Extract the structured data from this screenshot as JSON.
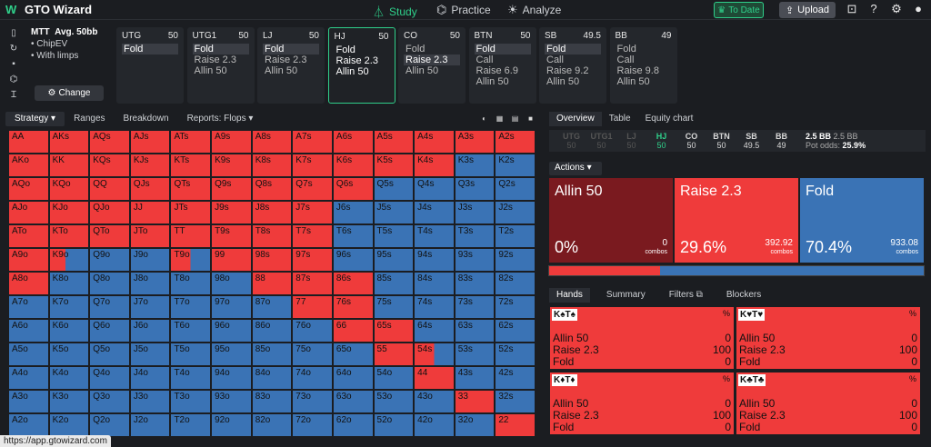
{
  "app": {
    "title": "GTO Wizard",
    "logo_letter": "W"
  },
  "nav": [
    {
      "label": "Study",
      "icon": "study-icon",
      "active": true
    },
    {
      "label": "Practice",
      "icon": "gamepad-icon",
      "active": false
    },
    {
      "label": "Analyze",
      "icon": "bulb-icon",
      "active": false
    }
  ],
  "topright": {
    "todate": "To Date",
    "upload": "Upload"
  },
  "game": {
    "format": "MTT",
    "stack": "Avg. 50bb",
    "bullets": [
      "ChipEV",
      "With limps"
    ],
    "change": "Change"
  },
  "positions": [
    {
      "name": "UTG",
      "stack": "50",
      "actions": [
        "Fold"
      ],
      "selected": 0
    },
    {
      "name": "UTG1",
      "stack": "50",
      "actions": [
        "Fold",
        "Raise 2.3",
        "Allin 50"
      ],
      "selected": 0
    },
    {
      "name": "LJ",
      "stack": "50",
      "actions": [
        "Fold",
        "Raise 2.3",
        "Allin 50"
      ],
      "selected": 0
    },
    {
      "name": "HJ",
      "stack": "50",
      "actions": [
        "Fold",
        "Raise 2.3",
        "Allin 50"
      ],
      "selected": -1
    },
    {
      "name": "CO",
      "stack": "50",
      "actions": [
        "Fold",
        "Raise 2.3",
        "Allin 50"
      ],
      "selected": 1
    },
    {
      "name": "BTN",
      "stack": "50",
      "actions": [
        "Fold",
        "Call",
        "Raise 6.9",
        "Allin 50"
      ],
      "selected": 0
    },
    {
      "name": "SB",
      "stack": "49.5",
      "actions": [
        "Fold",
        "Call",
        "Raise 9.2",
        "Allin 50"
      ],
      "selected": 0
    },
    {
      "name": "BB",
      "stack": "49",
      "actions": [
        "Fold",
        "Call",
        "Raise 9.8",
        "Allin 50"
      ],
      "selected": -1
    }
  ],
  "tabs": {
    "strategy": "Strategy",
    "ranges": "Ranges",
    "breakdown": "Breakdown",
    "reports": "Reports: Flops"
  },
  "right_tabs": [
    "Overview",
    "Table",
    "Equity chart"
  ],
  "seats": [
    {
      "pos": "UTG",
      "val": "50",
      "dim": true
    },
    {
      "pos": "UTG1",
      "val": "50",
      "dim": true
    },
    {
      "pos": "LJ",
      "val": "50",
      "dim": true
    },
    {
      "pos": "HJ",
      "val": "50",
      "hj": true
    },
    {
      "pos": "CO",
      "val": "50"
    },
    {
      "pos": "BTN",
      "val": "50"
    },
    {
      "pos": "SB",
      "val": "49.5"
    },
    {
      "pos": "BB",
      "val": "49"
    }
  ],
  "pot": {
    "bb": "2.5 BB",
    "bb2": "2.5 BB",
    "odds_label": "Pot odds:",
    "odds": "25.9%"
  },
  "actions_label": "Actions",
  "action_boxes": [
    {
      "name": "Allin 50",
      "pct": "0%",
      "combos": "0",
      "unit": "combos",
      "color": "#7a1a1f"
    },
    {
      "name": "Raise 2.3",
      "pct": "29.6%",
      "combos": "392.92",
      "unit": "combos",
      "color": "#ef3b3b"
    },
    {
      "name": "Fold",
      "pct": "70.4%",
      "combos": "933.08",
      "unit": "combos",
      "color": "#3a73b5"
    }
  ],
  "bar": {
    "raise_frac": 0.296,
    "fold_frac": 0.704
  },
  "hands_tabs": [
    "Hands",
    "Summary",
    "Filters",
    "Blockers"
  ],
  "hands": [
    {
      "card": "K♠T♠",
      "rows": [
        [
          "Allin 50",
          "0"
        ],
        [
          "Raise 2.3",
          "100"
        ],
        [
          "Fold",
          "0"
        ]
      ]
    },
    {
      "card": "K♥T♥",
      "rows": [
        [
          "Allin 50",
          "0"
        ],
        [
          "Raise 2.3",
          "100"
        ],
        [
          "Fold",
          "0"
        ]
      ]
    },
    {
      "card": "K♦T♦",
      "rows": [
        [
          "Allin 50",
          "0"
        ],
        [
          "Raise 2.3",
          "100"
        ],
        [
          "Fold",
          "0"
        ]
      ]
    },
    {
      "card": "K♣T♣",
      "rows": [
        [
          "Allin 50",
          "0"
        ],
        [
          "Raise 2.3",
          "100"
        ],
        [
          "Fold",
          "0"
        ]
      ]
    }
  ],
  "hands_pct": "%",
  "status_url": "https://app.gtowizard.com",
  "colors": {
    "raise": "#ef3b3b",
    "fold": "#3a73b5",
    "accent": "#2fcf8a"
  },
  "grid": {
    "ranks": [
      "A",
      "K",
      "Q",
      "J",
      "T",
      "9",
      "8",
      "7",
      "6",
      "5",
      "4",
      "3",
      "2"
    ],
    "raise": [
      [
        1,
        1,
        1,
        1,
        1,
        1,
        1,
        1,
        1,
        1,
        1,
        1,
        1
      ],
      [
        1,
        1,
        1,
        1,
        1,
        1,
        1,
        1,
        1,
        1,
        1,
        0,
        0
      ],
      [
        1,
        1,
        1,
        1,
        1,
        1,
        1,
        1,
        1,
        0,
        0,
        0,
        0
      ],
      [
        1,
        1,
        1,
        1,
        1,
        1,
        1,
        1,
        0,
        0,
        0,
        0,
        0
      ],
      [
        1,
        1,
        1,
        1,
        1,
        1,
        1,
        1,
        0,
        0,
        0,
        0,
        0
      ],
      [
        1,
        0.4,
        0,
        0,
        0.5,
        1,
        1,
        1,
        0,
        0,
        0,
        0,
        0
      ],
      [
        1,
        0,
        0,
        0,
        0,
        0,
        1,
        1,
        1,
        0,
        0,
        0,
        0
      ],
      [
        0,
        0,
        0,
        0,
        0,
        0,
        0,
        1,
        1,
        0,
        0,
        0,
        0
      ],
      [
        0,
        0,
        0,
        0,
        0,
        0,
        0,
        0,
        1,
        1,
        0,
        0,
        0
      ],
      [
        0,
        0,
        0,
        0,
        0,
        0,
        0,
        0,
        0,
        1,
        0.5,
        0,
        0
      ],
      [
        0,
        0,
        0,
        0,
        0,
        0,
        0,
        0,
        0,
        0,
        1,
        0,
        0
      ],
      [
        0,
        0,
        0,
        0,
        0,
        0,
        0,
        0,
        0,
        0,
        0,
        1,
        0
      ],
      [
        0,
        0,
        0,
        0,
        0,
        0,
        0,
        0,
        0,
        0,
        0,
        0,
        1
      ]
    ]
  }
}
